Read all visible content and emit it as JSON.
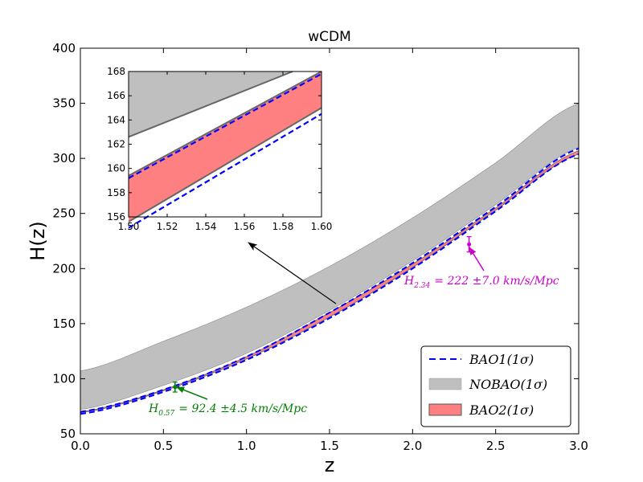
{
  "chart_data": {
    "type": "area",
    "title": "wCDM",
    "xlabel": "z",
    "ylabel": "H(z)",
    "xlim": [
      0.0,
      3.0
    ],
    "ylim": [
      50,
      400
    ],
    "x_ticks": [
      "0.0",
      "0.5",
      "1.0",
      "1.5",
      "2.0",
      "2.5",
      "3.0"
    ],
    "y_ticks": [
      "50",
      "100",
      "150",
      "200",
      "250",
      "300",
      "350",
      "400"
    ],
    "series": [
      {
        "name": "BAO1(1σ)",
        "kind": "dashed-line",
        "color": "#0000ff",
        "x": [
          0.0,
          0.5,
          1.0,
          1.5,
          2.0,
          2.5,
          3.0
        ],
        "lower": [
          68,
          88,
          117,
          155,
          200,
          252,
          304
        ],
        "upper": [
          70,
          90,
          120,
          160,
          205,
          256,
          309
        ]
      },
      {
        "name": "NOBAO(1σ)",
        "kind": "band",
        "color": "#bfbfbf",
        "x": [
          0.0,
          0.5,
          1.0,
          1.5,
          2.0,
          2.5,
          3.0
        ],
        "lower": [
          72,
          94,
          123,
          162,
          207,
          258,
          310
        ],
        "upper": [
          107,
          134,
          165,
          202,
          246,
          296,
          350
        ]
      },
      {
        "name": "BAO2(1σ)",
        "kind": "band",
        "color": "#ff8080",
        "x": [
          0.0,
          0.5,
          1.0,
          1.5,
          2.0,
          2.5,
          3.0
        ],
        "lower": [
          69,
          89,
          118,
          156,
          201,
          253,
          304
        ],
        "upper": [
          70,
          90,
          120,
          160,
          204,
          255,
          307
        ]
      }
    ],
    "points": [
      {
        "z": 0.57,
        "H": 92.4,
        "err": 4.5,
        "color": "#008000"
      },
      {
        "z": 2.34,
        "H": 222,
        "err": 7.0,
        "color": "#cc00cc"
      }
    ],
    "annotations": {
      "h057": {
        "prefix": "H",
        "sub": "0.57",
        "text": "= 92.4 ±4.5 km/s/Mpc"
      },
      "h234": {
        "prefix": "H",
        "sub": "2.34",
        "text": "= 222 ±7.0 km/s/Mpc"
      }
    },
    "legend": {
      "position": "lower-right",
      "entries": [
        {
          "base": "BAO1",
          "sigma": "(1σ)"
        },
        {
          "base": "NOBAO",
          "sigma": "(1σ)"
        },
        {
          "base": "BAO2",
          "sigma": "(1σ)"
        }
      ]
    },
    "inset": {
      "xlim": [
        1.5,
        1.6
      ],
      "ylim": [
        156,
        168
      ],
      "x_ticks": [
        "1.50",
        "1.52",
        "1.54",
        "1.56",
        "1.58",
        "1.60"
      ],
      "y_ticks": [
        "156",
        "158",
        "160",
        "162",
        "164",
        "166",
        "168"
      ],
      "bao2": {
        "lower": [
          155.6,
          165.0
        ],
        "upper": [
          159.4,
          168.0
        ]
      },
      "bao1_dashed": {
        "lower": [
          155.1,
          164.5
        ],
        "upper": [
          159.2,
          167.8
        ]
      },
      "nobao_lower": [
        162.6,
        168.0
      ],
      "nobao_lower_end_x": 1.585
    }
  }
}
